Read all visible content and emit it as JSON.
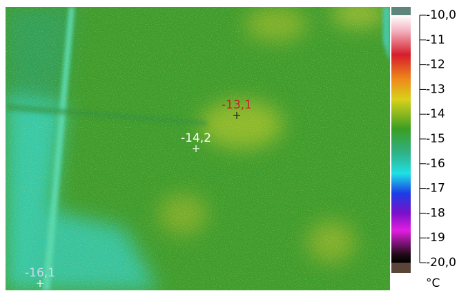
{
  "scale": {
    "ticks": [
      "-10,0",
      "-11",
      "-12",
      "-13",
      "-14",
      "-15",
      "-16",
      "-17",
      "-18",
      "-19",
      "-20,0"
    ],
    "unit": "°C"
  },
  "spots": [
    {
      "label": "-13,1"
    },
    {
      "label": "-14,2"
    },
    {
      "label": "-16,1"
    }
  ]
}
